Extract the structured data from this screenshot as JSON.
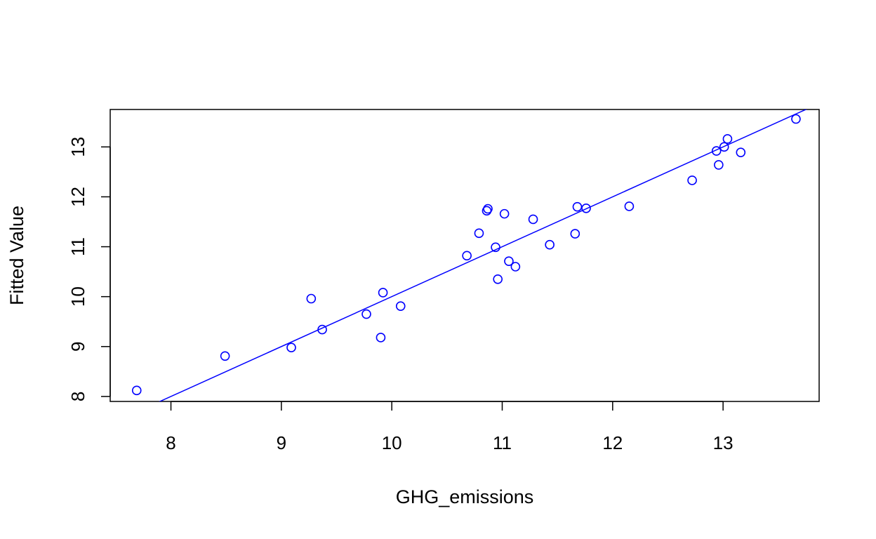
{
  "chart_data": {
    "type": "scatter",
    "title": "",
    "xlabel": "GHG_emissions",
    "ylabel": "Fitted Value",
    "xlim": [
      7.45,
      13.87
    ],
    "ylim": [
      7.9,
      13.75
    ],
    "x_ticks": [
      8,
      9,
      10,
      11,
      12,
      13
    ],
    "y_ticks": [
      8,
      9,
      10,
      11,
      12,
      13
    ],
    "x_tick_labels": [
      "8",
      "9",
      "10",
      "11",
      "12",
      "13"
    ],
    "y_tick_labels": [
      "8",
      "9",
      "10",
      "11",
      "12",
      "13"
    ],
    "grid": false,
    "legend": "none",
    "point_color": "#0000ff",
    "line_color": "#0000ff",
    "points": [
      {
        "x": 7.69,
        "y": 8.12
      },
      {
        "x": 8.49,
        "y": 8.81
      },
      {
        "x": 9.09,
        "y": 8.98
      },
      {
        "x": 9.27,
        "y": 9.96
      },
      {
        "x": 9.37,
        "y": 9.34
      },
      {
        "x": 9.77,
        "y": 9.65
      },
      {
        "x": 9.9,
        "y": 9.18
      },
      {
        "x": 9.92,
        "y": 10.08
      },
      {
        "x": 10.08,
        "y": 9.81
      },
      {
        "x": 10.68,
        "y": 10.82
      },
      {
        "x": 10.79,
        "y": 11.27
      },
      {
        "x": 10.86,
        "y": 11.72
      },
      {
        "x": 10.87,
        "y": 11.76
      },
      {
        "x": 10.94,
        "y": 10.99
      },
      {
        "x": 10.96,
        "y": 10.35
      },
      {
        "x": 11.02,
        "y": 11.66
      },
      {
        "x": 11.06,
        "y": 10.71
      },
      {
        "x": 11.12,
        "y": 10.6
      },
      {
        "x": 11.28,
        "y": 11.55
      },
      {
        "x": 11.43,
        "y": 11.04
      },
      {
        "x": 11.66,
        "y": 11.26
      },
      {
        "x": 11.68,
        "y": 11.8
      },
      {
        "x": 11.76,
        "y": 11.77
      },
      {
        "x": 12.15,
        "y": 11.81
      },
      {
        "x": 12.72,
        "y": 12.33
      },
      {
        "x": 12.94,
        "y": 12.92
      },
      {
        "x": 12.96,
        "y": 12.64
      },
      {
        "x": 13.01,
        "y": 13.0
      },
      {
        "x": 13.04,
        "y": 13.16
      },
      {
        "x": 13.16,
        "y": 12.89
      },
      {
        "x": 13.66,
        "y": 13.56
      }
    ],
    "fit_line": {
      "x": [
        7.45,
        13.87
      ],
      "y": [
        7.45,
        13.87
      ]
    }
  }
}
